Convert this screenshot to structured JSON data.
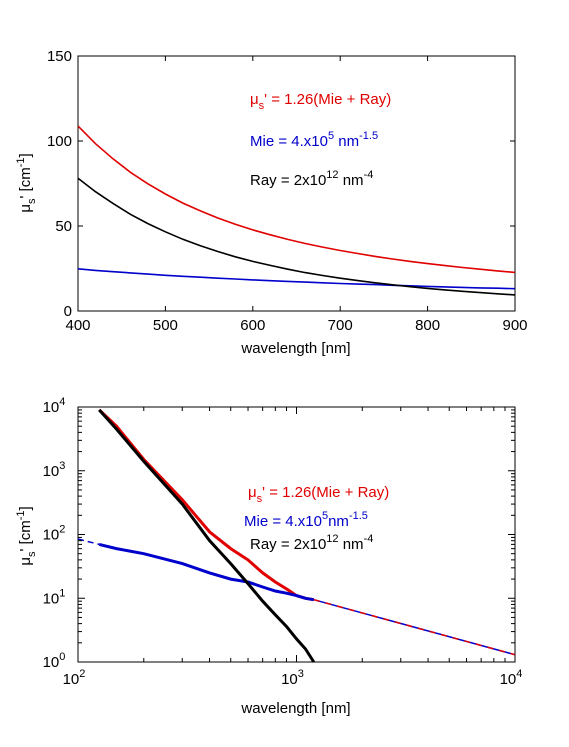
{
  "chart_data": [
    {
      "type": "line",
      "scale": "linear",
      "x": [
        400,
        420,
        440,
        460,
        480,
        500,
        520,
        540,
        560,
        580,
        600,
        620,
        640,
        660,
        680,
        700,
        720,
        740,
        760,
        780,
        800,
        820,
        840,
        860,
        880,
        900
      ],
      "series": [
        {
          "color": "#e00000",
          "values": [
            108.8,
            98.4,
            89.5,
            81.6,
            74.8,
            68.8,
            63.5,
            58.9,
            54.7,
            51.0,
            47.7,
            44.8,
            42.1,
            39.7,
            37.6,
            35.6,
            33.8,
            32.1,
            30.6,
            29.2,
            27.9,
            26.7,
            25.6,
            24.6,
            23.6,
            22.7
          ]
        },
        {
          "color": "#0000cc",
          "values": [
            24.8,
            23.9,
            23.1,
            22.4,
            21.7,
            21.0,
            20.4,
            19.9,
            19.3,
            18.8,
            18.3,
            17.8,
            17.4,
            17.0,
            16.6,
            16.2,
            15.8,
            15.5,
            15.1,
            14.8,
            14.5,
            14.2,
            13.9,
            13.6,
            13.4,
            13.1
          ]
        },
        {
          "color": "#000000",
          "values": [
            78.1,
            70.2,
            63.3,
            56.9,
            51.4,
            46.6,
            42.2,
            38.4,
            35.0,
            31.9,
            29.2,
            26.8,
            24.6,
            22.6,
            20.9,
            19.3,
            17.9,
            16.6,
            15.4,
            14.3,
            13.3,
            12.4,
            11.6,
            10.8,
            10.1,
            9.5
          ]
        }
      ],
      "xlabel": "wavelength [nm]",
      "ylabel_main": "μ",
      "ylabel_sub": "s",
      "ylabel_rest": "' [cm",
      "ylabel_sup": "-1",
      "ylabel_close": "]",
      "xlim": [
        400,
        900
      ],
      "ylim": [
        0,
        150
      ],
      "xticks": [
        400,
        500,
        600,
        700,
        800,
        900
      ],
      "yticks": [
        0,
        50,
        100,
        150
      ],
      "grid": false,
      "annotations": {
        "eq1_mu": "μ",
        "eq1_sub": "s",
        "eq1_rest": "' = 1.26(Mie + Ray)",
        "eq2_a": "Mie = 4.x10",
        "eq2_sup1": "5",
        "eq2_b": " nm",
        "eq2_sup2": "-1.5",
        "eq3_a": "Ray = 2x10",
        "eq3_sup1": "12",
        "eq3_b": " nm",
        "eq3_sup2": "-4"
      }
    },
    {
      "type": "line",
      "scale": "log",
      "x": [
        125,
        150,
        200,
        300,
        400,
        500,
        600,
        700,
        800,
        900,
        1000,
        1100,
        1200
      ],
      "series": [
        {
          "color": "#e00000",
          "values": [
            9000,
            5000,
            1500,
            350,
            110,
            60,
            40,
            25,
            18,
            14,
            11,
            10,
            9.5
          ]
        },
        {
          "color": "#0000cc",
          "values": [
            70,
            60,
            50,
            35,
            25,
            20,
            18,
            15,
            13,
            12,
            11,
            10,
            9.5
          ]
        },
        {
          "color": "#000000",
          "values": [
            9000,
            4500,
            1400,
            300,
            80,
            35,
            17,
            9,
            5.5,
            3.6,
            2.3,
            1.6,
            1.0
          ]
        }
      ],
      "dashed_extension": {
        "x": [
          1200,
          10000
        ],
        "values": [
          9.5,
          1.3
        ]
      },
      "xlabel": "wavelength [nm]",
      "xlim_exp": [
        2,
        4
      ],
      "ylim_exp": [
        0,
        4
      ],
      "xtick_labels": [
        {
          "base": "10",
          "exp": "2"
        },
        {
          "base": "10",
          "exp": "3"
        },
        {
          "base": "10",
          "exp": "4"
        }
      ],
      "ytick_labels": [
        {
          "base": "10",
          "exp": "0"
        },
        {
          "base": "10",
          "exp": "1"
        },
        {
          "base": "10",
          "exp": "2"
        },
        {
          "base": "10",
          "exp": "3"
        },
        {
          "base": "10",
          "exp": "4"
        }
      ],
      "grid": false,
      "annotations": {
        "eq1_mu": "μ",
        "eq1_sub": "s",
        "eq1_rest": "' = 1.26(Mie + Ray)",
        "eq2_a": "Mie = 4.x10",
        "eq2_sup1": "5",
        "eq2_b": "nm",
        "eq2_sup2": "-1.5",
        "eq3_a": "Ray = 2x10",
        "eq3_sup1": "12",
        "eq3_b": " nm",
        "eq3_sup2": "-4"
      }
    }
  ]
}
